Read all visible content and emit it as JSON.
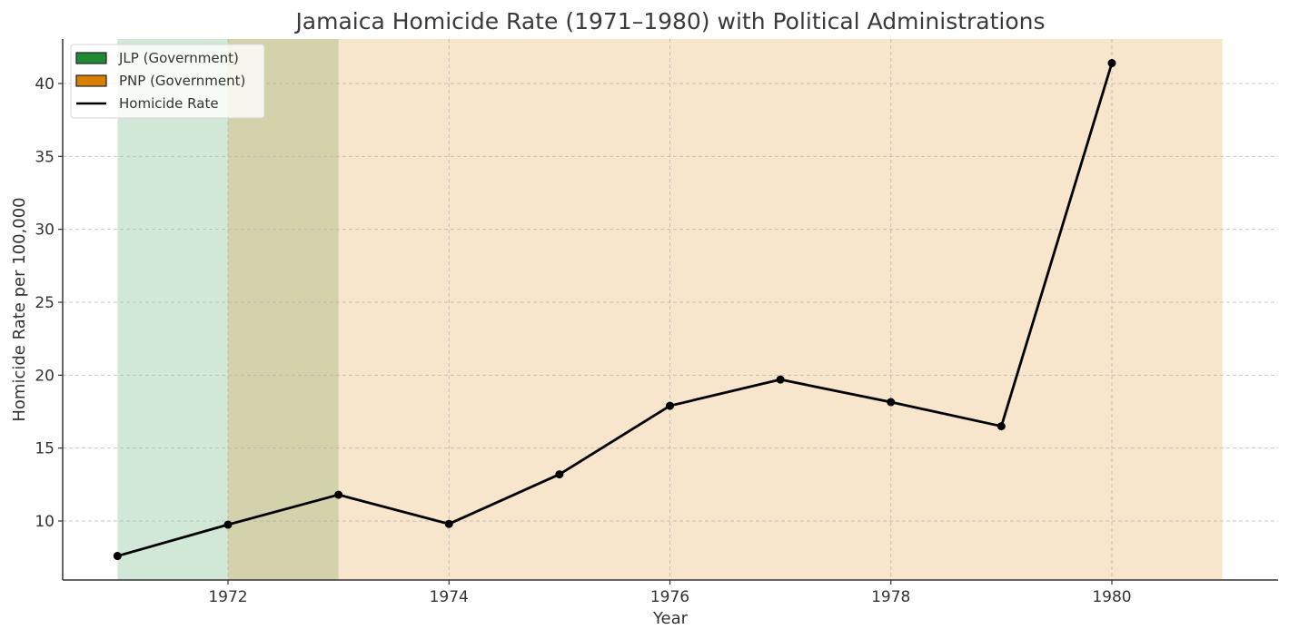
{
  "chart_data": {
    "type": "line",
    "title": "Jamaica Homicide Rate (1971–1980) with Political Administrations",
    "xlabel": "Year",
    "ylabel": "Homicide Rate per 100,000",
    "x": [
      1971,
      1972,
      1973,
      1974,
      1975,
      1976,
      1977,
      1978,
      1979,
      1980
    ],
    "series": [
      {
        "name": "Homicide Rate",
        "values": [
          7.6,
          9.75,
          11.8,
          9.8,
          13.2,
          17.9,
          19.7,
          18.15,
          16.5,
          41.4
        ],
        "color": "#000000",
        "marker": "circle"
      }
    ],
    "shaded_spans": [
      {
        "label": "JLP (Government)",
        "start": 1971,
        "end": 1973,
        "color": "#1f8a33"
      },
      {
        "label": "PNP (Government)",
        "start": 1972,
        "end": 1981,
        "color": "#d97f00"
      }
    ],
    "xticks": [
      1972,
      1974,
      1976,
      1978,
      1980
    ],
    "yticks": [
      10,
      15,
      20,
      25,
      30,
      35,
      40
    ],
    "xlim": [
      1970.5,
      1981.5
    ],
    "ylim": [
      6.0,
      43.1
    ],
    "grid": true,
    "legend": {
      "position": "upper left",
      "entries": [
        "JLP (Government)",
        "PNP (Government)",
        "Homicide Rate"
      ]
    }
  },
  "labels": {
    "title": "Jamaica Homicide Rate (1971–1980) with Political Administrations",
    "xlabel": "Year",
    "ylabel": "Homicide Rate per 100,000",
    "legend": [
      "JLP (Government)",
      "PNP (Government)",
      "Homicide Rate"
    ]
  }
}
